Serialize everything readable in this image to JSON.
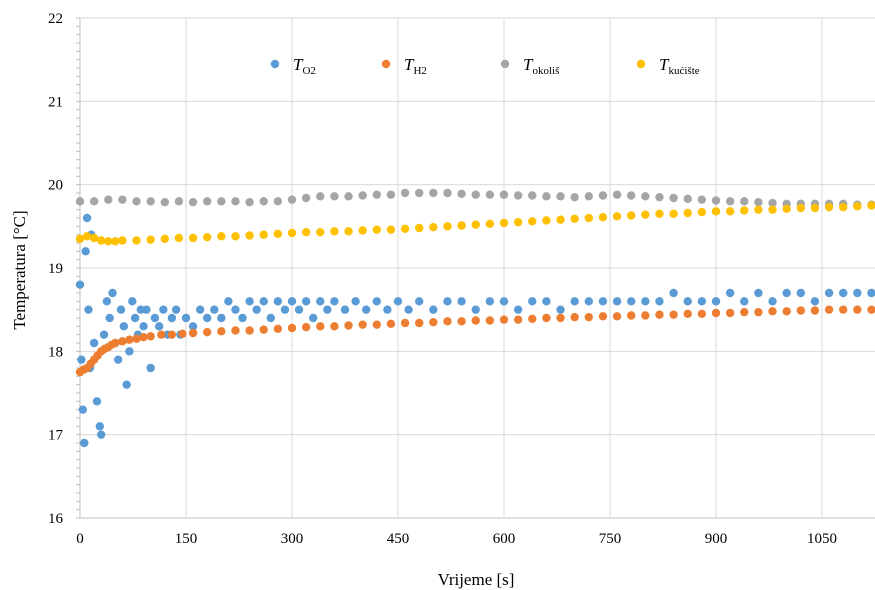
{
  "chart_data": {
    "type": "scatter",
    "xlabel": "Vrijeme [s]",
    "ylabel": "Temperatura [°C]",
    "xlim": [
      0,
      1125
    ],
    "ylim": [
      16,
      22
    ],
    "xticks": [
      0,
      150,
      300,
      450,
      600,
      750,
      900,
      1050
    ],
    "yticks": [
      16,
      17,
      18,
      19,
      20,
      21,
      22
    ],
    "grid": true,
    "legend_position": "top",
    "series": [
      {
        "name": "T_O2",
        "symbol": "T",
        "subscript": "O2",
        "color": "#5b9bd5",
        "points": [
          [
            0,
            18.8
          ],
          [
            2,
            17.9
          ],
          [
            4,
            17.3
          ],
          [
            6,
            16.9
          ],
          [
            8,
            19.2
          ],
          [
            10,
            19.6
          ],
          [
            12,
            18.5
          ],
          [
            14,
            17.8
          ],
          [
            16,
            19.4
          ],
          [
            20,
            18.1
          ],
          [
            24,
            17.4
          ],
          [
            28,
            17.1
          ],
          [
            30,
            17.0
          ],
          [
            34,
            18.2
          ],
          [
            38,
            18.6
          ],
          [
            42,
            18.4
          ],
          [
            46,
            18.7
          ],
          [
            50,
            18.1
          ],
          [
            54,
            17.9
          ],
          [
            58,
            18.5
          ],
          [
            62,
            18.3
          ],
          [
            66,
            17.6
          ],
          [
            70,
            18.0
          ],
          [
            74,
            18.6
          ],
          [
            78,
            18.4
          ],
          [
            82,
            18.2
          ],
          [
            86,
            18.5
          ],
          [
            90,
            18.3
          ],
          [
            94,
            18.5
          ],
          [
            100,
            17.8
          ],
          [
            106,
            18.4
          ],
          [
            112,
            18.3
          ],
          [
            118,
            18.5
          ],
          [
            124,
            18.2
          ],
          [
            130,
            18.4
          ],
          [
            136,
            18.5
          ],
          [
            142,
            18.2
          ],
          [
            150,
            18.4
          ],
          [
            160,
            18.3
          ],
          [
            170,
            18.5
          ],
          [
            180,
            18.4
          ],
          [
            190,
            18.5
          ],
          [
            200,
            18.4
          ],
          [
            210,
            18.6
          ],
          [
            220,
            18.5
          ],
          [
            230,
            18.4
          ],
          [
            240,
            18.6
          ],
          [
            250,
            18.5
          ],
          [
            260,
            18.6
          ],
          [
            270,
            18.4
          ],
          [
            280,
            18.6
          ],
          [
            290,
            18.5
          ],
          [
            300,
            18.6
          ],
          [
            310,
            18.5
          ],
          [
            320,
            18.6
          ],
          [
            330,
            18.4
          ],
          [
            340,
            18.6
          ],
          [
            350,
            18.5
          ],
          [
            360,
            18.6
          ],
          [
            375,
            18.5
          ],
          [
            390,
            18.6
          ],
          [
            405,
            18.5
          ],
          [
            420,
            18.6
          ],
          [
            435,
            18.5
          ],
          [
            450,
            18.6
          ],
          [
            465,
            18.5
          ],
          [
            480,
            18.6
          ],
          [
            500,
            18.5
          ],
          [
            520,
            18.6
          ],
          [
            540,
            18.6
          ],
          [
            560,
            18.5
          ],
          [
            580,
            18.6
          ],
          [
            600,
            18.6
          ],
          [
            620,
            18.5
          ],
          [
            640,
            18.6
          ],
          [
            660,
            18.6
          ],
          [
            680,
            18.5
          ],
          [
            700,
            18.6
          ],
          [
            720,
            18.6
          ],
          [
            740,
            18.6
          ],
          [
            760,
            18.6
          ],
          [
            780,
            18.6
          ],
          [
            800,
            18.6
          ],
          [
            820,
            18.6
          ],
          [
            840,
            18.7
          ],
          [
            860,
            18.6
          ],
          [
            880,
            18.6
          ],
          [
            900,
            18.6
          ],
          [
            920,
            18.7
          ],
          [
            940,
            18.6
          ],
          [
            960,
            18.7
          ],
          [
            980,
            18.6
          ],
          [
            1000,
            18.7
          ],
          [
            1020,
            18.7
          ],
          [
            1040,
            18.6
          ],
          [
            1060,
            18.7
          ],
          [
            1080,
            18.7
          ],
          [
            1100,
            18.7
          ],
          [
            1120,
            18.7
          ]
        ]
      },
      {
        "name": "T_H2",
        "symbol": "T",
        "subscript": "H2",
        "color": "#ed7d31",
        "points": [
          [
            0,
            17.75
          ],
          [
            5,
            17.78
          ],
          [
            10,
            17.8
          ],
          [
            15,
            17.85
          ],
          [
            20,
            17.9
          ],
          [
            25,
            17.95
          ],
          [
            30,
            18.0
          ],
          [
            35,
            18.03
          ],
          [
            40,
            18.05
          ],
          [
            45,
            18.08
          ],
          [
            50,
            18.1
          ],
          [
            60,
            18.12
          ],
          [
            70,
            18.14
          ],
          [
            80,
            18.15
          ],
          [
            90,
            18.17
          ],
          [
            100,
            18.18
          ],
          [
            115,
            18.2
          ],
          [
            130,
            18.2
          ],
          [
            145,
            18.21
          ],
          [
            160,
            18.22
          ],
          [
            180,
            18.23
          ],
          [
            200,
            18.24
          ],
          [
            220,
            18.25
          ],
          [
            240,
            18.25
          ],
          [
            260,
            18.26
          ],
          [
            280,
            18.27
          ],
          [
            300,
            18.28
          ],
          [
            320,
            18.29
          ],
          [
            340,
            18.3
          ],
          [
            360,
            18.3
          ],
          [
            380,
            18.31
          ],
          [
            400,
            18.32
          ],
          [
            420,
            18.32
          ],
          [
            440,
            18.33
          ],
          [
            460,
            18.34
          ],
          [
            480,
            18.34
          ],
          [
            500,
            18.35
          ],
          [
            520,
            18.36
          ],
          [
            540,
            18.36
          ],
          [
            560,
            18.37
          ],
          [
            580,
            18.37
          ],
          [
            600,
            18.38
          ],
          [
            620,
            18.38
          ],
          [
            640,
            18.39
          ],
          [
            660,
            18.4
          ],
          [
            680,
            18.4
          ],
          [
            700,
            18.41
          ],
          [
            720,
            18.41
          ],
          [
            740,
            18.42
          ],
          [
            760,
            18.42
          ],
          [
            780,
            18.43
          ],
          [
            800,
            18.43
          ],
          [
            820,
            18.44
          ],
          [
            840,
            18.44
          ],
          [
            860,
            18.45
          ],
          [
            880,
            18.45
          ],
          [
            900,
            18.46
          ],
          [
            920,
            18.46
          ],
          [
            940,
            18.47
          ],
          [
            960,
            18.47
          ],
          [
            980,
            18.48
          ],
          [
            1000,
            18.48
          ],
          [
            1020,
            18.49
          ],
          [
            1040,
            18.49
          ],
          [
            1060,
            18.5
          ],
          [
            1080,
            18.5
          ],
          [
            1100,
            18.5
          ],
          [
            1120,
            18.5
          ]
        ]
      },
      {
        "name": "T_okoliš",
        "symbol": "T",
        "subscript": "okoliš",
        "color": "#a5a5a5",
        "points": [
          [
            0,
            19.8
          ],
          [
            20,
            19.8
          ],
          [
            40,
            19.82
          ],
          [
            60,
            19.82
          ],
          [
            80,
            19.8
          ],
          [
            100,
            19.8
          ],
          [
            120,
            19.79
          ],
          [
            140,
            19.8
          ],
          [
            160,
            19.79
          ],
          [
            180,
            19.8
          ],
          [
            200,
            19.8
          ],
          [
            220,
            19.8
          ],
          [
            240,
            19.79
          ],
          [
            260,
            19.8
          ],
          [
            280,
            19.8
          ],
          [
            300,
            19.82
          ],
          [
            320,
            19.84
          ],
          [
            340,
            19.86
          ],
          [
            360,
            19.86
          ],
          [
            380,
            19.86
          ],
          [
            400,
            19.87
          ],
          [
            420,
            19.88
          ],
          [
            440,
            19.88
          ],
          [
            460,
            19.9
          ],
          [
            480,
            19.9
          ],
          [
            500,
            19.9
          ],
          [
            520,
            19.9
          ],
          [
            540,
            19.89
          ],
          [
            560,
            19.88
          ],
          [
            580,
            19.88
          ],
          [
            600,
            19.88
          ],
          [
            620,
            19.87
          ],
          [
            640,
            19.87
          ],
          [
            660,
            19.86
          ],
          [
            680,
            19.86
          ],
          [
            700,
            19.85
          ],
          [
            720,
            19.86
          ],
          [
            740,
            19.87
          ],
          [
            760,
            19.88
          ],
          [
            780,
            19.87
          ],
          [
            800,
            19.86
          ],
          [
            820,
            19.85
          ],
          [
            840,
            19.84
          ],
          [
            860,
            19.83
          ],
          [
            880,
            19.82
          ],
          [
            900,
            19.81
          ],
          [
            920,
            19.8
          ],
          [
            940,
            19.8
          ],
          [
            960,
            19.79
          ],
          [
            980,
            19.78
          ],
          [
            1000,
            19.77
          ],
          [
            1020,
            19.77
          ],
          [
            1040,
            19.77
          ],
          [
            1060,
            19.77
          ],
          [
            1080,
            19.77
          ],
          [
            1100,
            19.76
          ],
          [
            1120,
            19.76
          ]
        ]
      },
      {
        "name": "T_kućište",
        "symbol": "T",
        "subscript": "kućište",
        "color": "#ffc000",
        "points": [
          [
            0,
            19.35
          ],
          [
            10,
            19.38
          ],
          [
            20,
            19.36
          ],
          [
            30,
            19.33
          ],
          [
            40,
            19.32
          ],
          [
            50,
            19.32
          ],
          [
            60,
            19.33
          ],
          [
            80,
            19.33
          ],
          [
            100,
            19.34
          ],
          [
            120,
            19.35
          ],
          [
            140,
            19.36
          ],
          [
            160,
            19.36
          ],
          [
            180,
            19.37
          ],
          [
            200,
            19.38
          ],
          [
            220,
            19.38
          ],
          [
            240,
            19.39
          ],
          [
            260,
            19.4
          ],
          [
            280,
            19.41
          ],
          [
            300,
            19.42
          ],
          [
            320,
            19.43
          ],
          [
            340,
            19.43
          ],
          [
            360,
            19.44
          ],
          [
            380,
            19.44
          ],
          [
            400,
            19.45
          ],
          [
            420,
            19.46
          ],
          [
            440,
            19.46
          ],
          [
            460,
            19.47
          ],
          [
            480,
            19.48
          ],
          [
            500,
            19.49
          ],
          [
            520,
            19.5
          ],
          [
            540,
            19.51
          ],
          [
            560,
            19.52
          ],
          [
            580,
            19.53
          ],
          [
            600,
            19.54
          ],
          [
            620,
            19.55
          ],
          [
            640,
            19.56
          ],
          [
            660,
            19.57
          ],
          [
            680,
            19.58
          ],
          [
            700,
            19.59
          ],
          [
            720,
            19.6
          ],
          [
            740,
            19.61
          ],
          [
            760,
            19.62
          ],
          [
            780,
            19.63
          ],
          [
            800,
            19.64
          ],
          [
            820,
            19.65
          ],
          [
            840,
            19.65
          ],
          [
            860,
            19.66
          ],
          [
            880,
            19.67
          ],
          [
            900,
            19.68
          ],
          [
            920,
            19.68
          ],
          [
            940,
            19.69
          ],
          [
            960,
            19.7
          ],
          [
            980,
            19.7
          ],
          [
            1000,
            19.71
          ],
          [
            1020,
            19.72
          ],
          [
            1040,
            19.72
          ],
          [
            1060,
            19.73
          ],
          [
            1080,
            19.73
          ],
          [
            1100,
            19.74
          ],
          [
            1120,
            19.75
          ]
        ]
      }
    ]
  }
}
